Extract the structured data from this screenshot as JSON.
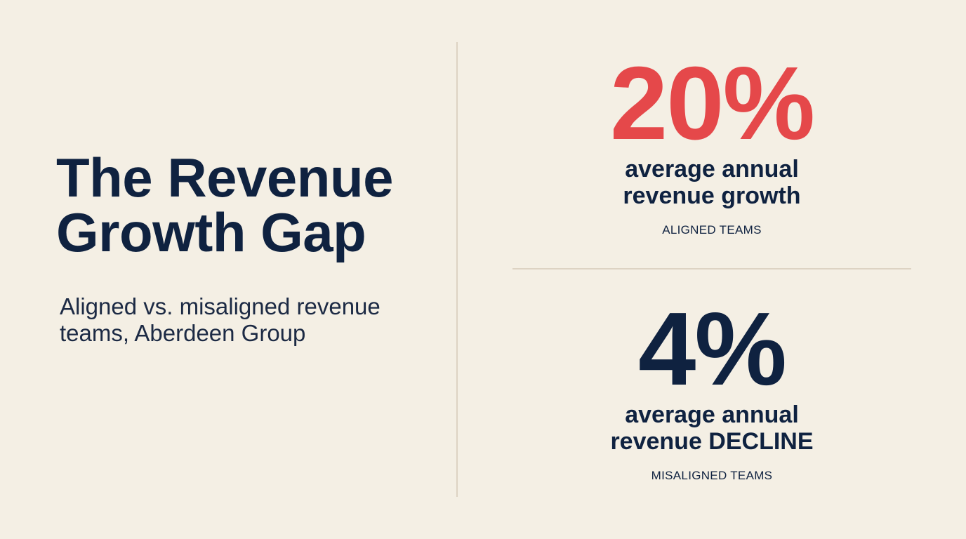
{
  "title": {
    "line1": "The Revenue",
    "line2": "Growth Gap"
  },
  "subtitle": {
    "line1": "Aligned vs. misaligned revenue",
    "line2": "teams, Aberdeen Group"
  },
  "stats": [
    {
      "value": "20%",
      "desc_line1": "average annual",
      "desc_line2": "revenue growth",
      "label": "ALIGNED TEAMS",
      "color": "#e5484a"
    },
    {
      "value": "4%",
      "desc_line1": "average annual",
      "desc_line2": "revenue DECLINE",
      "label": "MISALIGNED TEAMS",
      "color": "#0f2240"
    }
  ]
}
